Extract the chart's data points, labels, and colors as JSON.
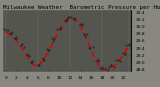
{
  "title": "Milwaukee Weather  Barometric Pressure per Hour (Last 24 Hours)",
  "ylim": [
    28.75,
    30.45
  ],
  "xlim": [
    -0.5,
    23.5
  ],
  "hours": [
    0,
    1,
    2,
    3,
    4,
    5,
    6,
    7,
    8,
    9,
    10,
    11,
    12,
    13,
    14,
    15,
    16,
    17,
    18,
    19,
    20,
    21,
    22,
    23
  ],
  "pressure_red": [
    29.85,
    29.75,
    29.6,
    29.4,
    29.15,
    28.95,
    28.9,
    29.05,
    29.3,
    29.6,
    29.9,
    30.15,
    30.25,
    30.2,
    30.0,
    29.7,
    29.35,
    29.0,
    28.82,
    28.8,
    28.88,
    29.0,
    29.2,
    29.45
  ],
  "pressure_black": [
    29.9,
    29.82,
    29.68,
    29.48,
    29.22,
    29.0,
    28.95,
    29.08,
    29.35,
    29.65,
    29.95,
    30.18,
    30.28,
    30.22,
    30.05,
    29.75,
    29.4,
    29.05,
    28.86,
    28.83,
    28.91,
    29.05,
    29.25,
    29.5
  ],
  "bg_color": "#888880",
  "plot_bg": "#555550",
  "red_color": "#dd0000",
  "black_color": "#111111",
  "dot_color": "#222222",
  "title_fontsize": 4.2,
  "tick_fontsize": 3.2,
  "grid_color": "#777770",
  "yticks": [
    28.8,
    29.0,
    29.2,
    29.4,
    29.6,
    29.8,
    30.0,
    30.2,
    30.4
  ],
  "xtick_step": 2,
  "vgrid_positions": [
    0,
    6,
    12,
    18,
    23
  ]
}
